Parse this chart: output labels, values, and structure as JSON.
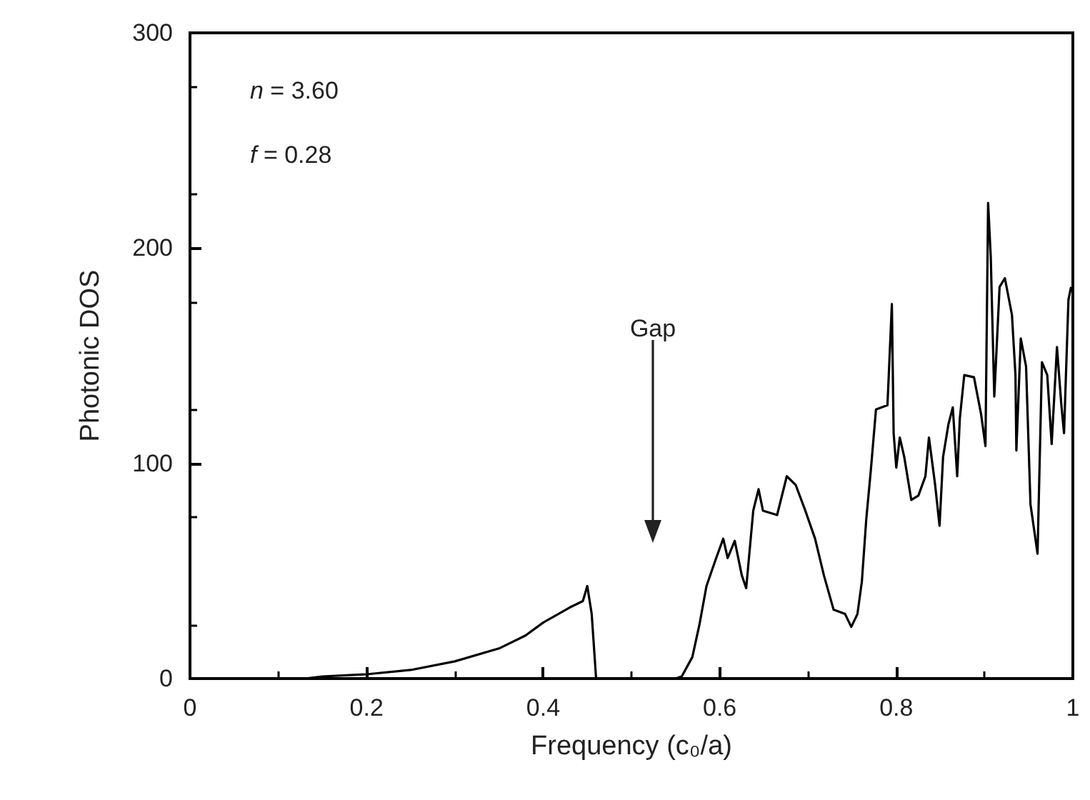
{
  "chart_data": {
    "type": "line",
    "xlabel": "Frequency (c₀/a)",
    "ylabel": "Photonic DOS",
    "annotations": [
      "n = 3.60",
      "f = 0.28",
      "Gap"
    ],
    "series": [
      {
        "color": "#000000",
        "x": [
          0.13,
          0.15,
          0.2,
          0.25,
          0.3,
          0.35,
          0.38,
          0.4,
          0.43,
          0.445,
          0.45,
          0.455,
          0.46,
          0.55,
          0.557,
          0.569,
          0.577,
          0.585,
          0.596,
          0.604,
          0.609,
          0.617,
          0.625,
          0.63,
          0.638,
          0.644,
          0.649,
          0.665,
          0.676,
          0.686,
          0.697,
          0.708,
          0.718,
          0.729,
          0.742,
          0.749,
          0.756,
          0.761,
          0.766,
          0.771,
          0.777,
          0.79,
          0.795,
          0.797,
          0.8,
          0.804,
          0.809,
          0.817,
          0.825,
          0.833,
          0.837,
          0.844,
          0.849,
          0.853,
          0.859,
          0.864,
          0.869,
          0.872,
          0.877,
          0.888,
          0.896,
          0.901,
          0.904,
          0.907,
          0.911,
          0.917,
          0.923,
          0.931,
          0.935,
          0.936,
          0.941,
          0.947,
          0.952,
          0.96,
          0.965,
          0.971,
          0.976,
          0.982,
          0.987,
          0.99,
          0.995,
          0.998
        ],
        "values": [
          0,
          1,
          2,
          4,
          8,
          14,
          20,
          26,
          33,
          36,
          43,
          30,
          0,
          0,
          1,
          10,
          25,
          43,
          56,
          65,
          56,
          64,
          48,
          42,
          78,
          88,
          78,
          76,
          94,
          90,
          78,
          65,
          48,
          32,
          30,
          24,
          30,
          45,
          74,
          96,
          125,
          127,
          174,
          114,
          98,
          112,
          103,
          83,
          85,
          94,
          112,
          90,
          71,
          103,
          118,
          126,
          94,
          121,
          141,
          140,
          123,
          108,
          221,
          196,
          131,
          182,
          186,
          169,
          141,
          106,
          158,
          145,
          81,
          58,
          147,
          141,
          109,
          154,
          127,
          114,
          176,
          182
        ]
      }
    ],
    "xlim": [
      0,
      1
    ],
    "xticks": [
      0,
      0.2,
      0.4,
      0.6,
      0.8,
      1
    ],
    "ylim": [
      0,
      300
    ],
    "yticks": [
      0,
      100,
      200,
      300
    ],
    "grid": false,
    "marker": "none",
    "line_style": "solid"
  }
}
